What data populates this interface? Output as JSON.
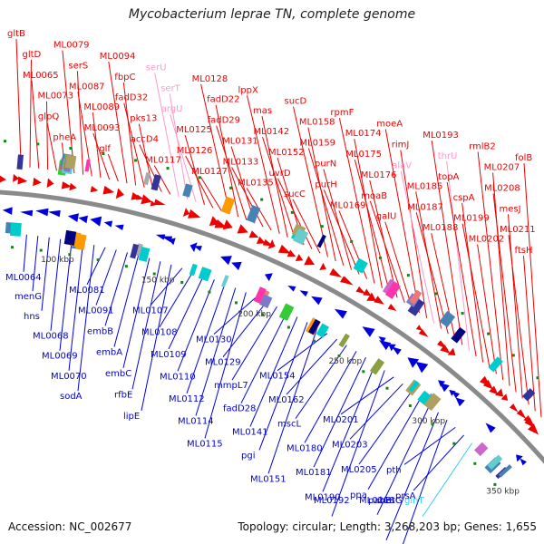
{
  "title": "Mycobacterium leprae TN, complete genome",
  "footer": {
    "accession": "Accession: NC_002677",
    "summary": "Topology: circular; Length: 3,268,203 bp; Genes: 1,655"
  },
  "colors": {
    "forward": "#ee0000",
    "reverse": "#0000dd",
    "rna_forward": "#ff99cc",
    "rna_reverse": "#33ccff",
    "backbone": "#888888",
    "tick_dot": "#118811"
  },
  "scale_labels": [
    "100 kbp",
    "150 kbp",
    "200 kbp",
    "250 kbp",
    "300 kbp",
    "350 kbp"
  ],
  "forward_labels": [
    {
      "text": "gltB",
      "type": "cds"
    },
    {
      "text": "gltD",
      "type": "cds"
    },
    {
      "text": "ML0065",
      "type": "cds"
    },
    {
      "text": "ML0073",
      "type": "cds"
    },
    {
      "text": "glpQ",
      "type": "cds"
    },
    {
      "text": "pheA",
      "type": "cds"
    },
    {
      "text": "ML0079",
      "type": "cds"
    },
    {
      "text": "serS",
      "type": "cds"
    },
    {
      "text": "ML0087",
      "type": "cds"
    },
    {
      "text": "ML0089",
      "type": "cds"
    },
    {
      "text": "ML0093",
      "type": "cds"
    },
    {
      "text": "glf",
      "type": "cds"
    },
    {
      "text": "ML0094",
      "type": "cds"
    },
    {
      "text": "fbpC",
      "type": "cds"
    },
    {
      "text": "fadD32",
      "type": "cds"
    },
    {
      "text": "pks13",
      "type": "cds"
    },
    {
      "text": "accD4",
      "type": "cds"
    },
    {
      "text": "ML0117",
      "type": "cds"
    },
    {
      "text": "serU",
      "type": "rna"
    },
    {
      "text": "serT",
      "type": "rna"
    },
    {
      "text": "argU",
      "type": "rna"
    },
    {
      "text": "ML0125",
      "type": "cds"
    },
    {
      "text": "ML0126",
      "type": "cds"
    },
    {
      "text": "ML0127",
      "type": "cds"
    },
    {
      "text": "ML0128",
      "type": "cds"
    },
    {
      "text": "fadD22",
      "type": "cds"
    },
    {
      "text": "fadD29",
      "type": "cds"
    },
    {
      "text": "ML0131",
      "type": "cds"
    },
    {
      "text": "ML0133",
      "type": "cds"
    },
    {
      "text": "ML0135",
      "type": "cds"
    },
    {
      "text": "lppX",
      "type": "cds"
    },
    {
      "text": "mas",
      "type": "cds"
    },
    {
      "text": "ML0142",
      "type": "cds"
    },
    {
      "text": "ML0152",
      "type": "cds"
    },
    {
      "text": "uvrD",
      "type": "cds"
    },
    {
      "text": "sucC",
      "type": "cds"
    },
    {
      "text": "sucD",
      "type": "cds"
    },
    {
      "text": "ML0158",
      "type": "cds"
    },
    {
      "text": "ML0159",
      "type": "cds"
    },
    {
      "text": "purN",
      "type": "cds"
    },
    {
      "text": "purH",
      "type": "cds"
    },
    {
      "text": "ML0169",
      "type": "cds"
    },
    {
      "text": "rpmF",
      "type": "cds"
    },
    {
      "text": "ML0174",
      "type": "cds"
    },
    {
      "text": "ML0175",
      "type": "cds"
    },
    {
      "text": "ML0176",
      "type": "cds"
    },
    {
      "text": "moaB",
      "type": "cds"
    },
    {
      "text": "galU",
      "type": "cds"
    },
    {
      "text": "moeA",
      "type": "cds"
    },
    {
      "text": "rimJ",
      "type": "cds"
    },
    {
      "text": "alaV",
      "type": "rna"
    },
    {
      "text": "ML0185",
      "type": "cds"
    },
    {
      "text": "ML0187",
      "type": "cds"
    },
    {
      "text": "ML0188",
      "type": "cds"
    },
    {
      "text": "ML0193",
      "type": "cds"
    },
    {
      "text": "thrU",
      "type": "rna"
    },
    {
      "text": "topA",
      "type": "cds"
    },
    {
      "text": "cspA",
      "type": "cds"
    },
    {
      "text": "ML0199",
      "type": "cds"
    },
    {
      "text": "ML0202",
      "type": "cds"
    },
    {
      "text": "rmlB2",
      "type": "cds"
    },
    {
      "text": "ML0207",
      "type": "cds"
    },
    {
      "text": "ML0208",
      "type": "cds"
    },
    {
      "text": "mesJ",
      "type": "cds"
    },
    {
      "text": "ML0211",
      "type": "cds"
    },
    {
      "text": "ftsH",
      "type": "cds"
    },
    {
      "text": "folB",
      "type": "cds"
    }
  ],
  "reverse_labels": [
    {
      "text": "ML0064",
      "type": "cds"
    },
    {
      "text": "menG",
      "type": "cds"
    },
    {
      "text": "hns",
      "type": "cds"
    },
    {
      "text": "ML0068",
      "type": "cds"
    },
    {
      "text": "ML0069",
      "type": "cds"
    },
    {
      "text": "ML0070",
      "type": "cds"
    },
    {
      "text": "sodA",
      "type": "cds"
    },
    {
      "text": "ML0081",
      "type": "cds"
    },
    {
      "text": "ML0091",
      "type": "cds"
    },
    {
      "text": "embB",
      "type": "cds"
    },
    {
      "text": "embA",
      "type": "cds"
    },
    {
      "text": "embC",
      "type": "cds"
    },
    {
      "text": "rfbE",
      "type": "cds"
    },
    {
      "text": "lipE",
      "type": "cds"
    },
    {
      "text": "ML0107",
      "type": "cds"
    },
    {
      "text": "ML0108",
      "type": "cds"
    },
    {
      "text": "ML0109",
      "type": "cds"
    },
    {
      "text": "ML0110",
      "type": "cds"
    },
    {
      "text": "ML0112",
      "type": "cds"
    },
    {
      "text": "ML0114",
      "type": "cds"
    },
    {
      "text": "ML0115",
      "type": "cds"
    },
    {
      "text": "ML0130",
      "type": "cds"
    },
    {
      "text": "ML0129",
      "type": "cds"
    },
    {
      "text": "mmpL7",
      "type": "cds"
    },
    {
      "text": "fadD28",
      "type": "cds"
    },
    {
      "text": "ML0141",
      "type": "cds"
    },
    {
      "text": "pgi",
      "type": "cds"
    },
    {
      "text": "ML0151",
      "type": "cds"
    },
    {
      "text": "ML0154",
      "type": "cds"
    },
    {
      "text": "ML0162",
      "type": "cds"
    },
    {
      "text": "mscL",
      "type": "cds"
    },
    {
      "text": "ML0180",
      "type": "cds"
    },
    {
      "text": "ML0181",
      "type": "cds"
    },
    {
      "text": "ML0190",
      "type": "cds"
    },
    {
      "text": "ML0192",
      "type": "cds"
    },
    {
      "text": "ML0201",
      "type": "cds"
    },
    {
      "text": "ML0203",
      "type": "cds"
    },
    {
      "text": "ML0205",
      "type": "cds"
    },
    {
      "text": "ppa",
      "type": "cds"
    },
    {
      "text": "ML0218",
      "type": "cds"
    },
    {
      "text": "pabB",
      "type": "cds"
    },
    {
      "text": "metG",
      "type": "cds"
    },
    {
      "text": "pth",
      "type": "cds"
    },
    {
      "text": "prsA",
      "type": "cds"
    },
    {
      "text": "glnT",
      "type": "rna"
    }
  ]
}
